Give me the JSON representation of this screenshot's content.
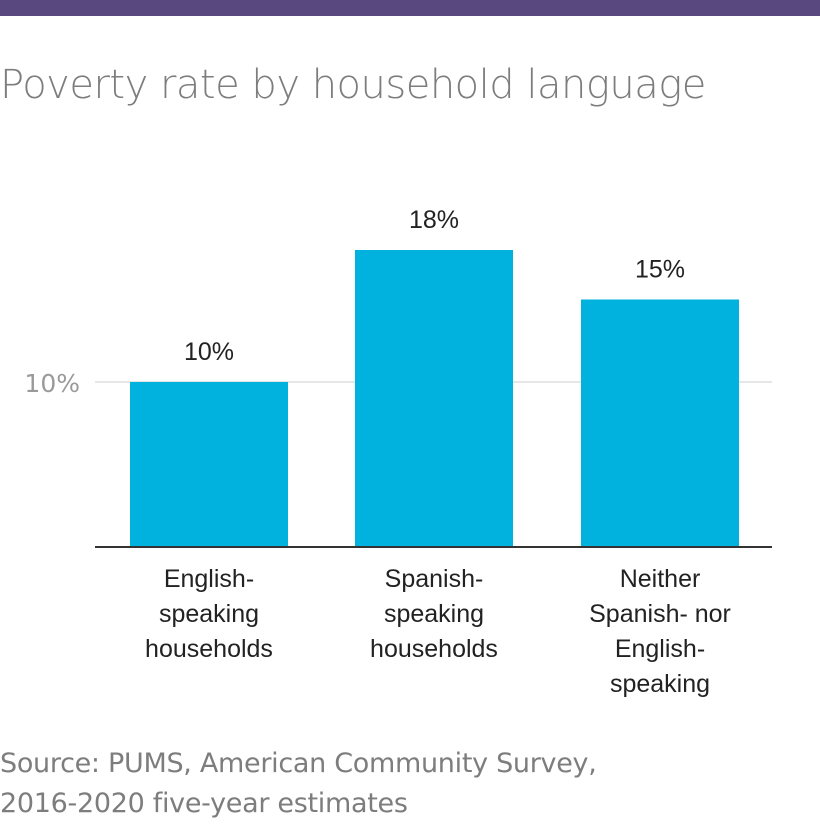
{
  "colors": {
    "top_bar": "#58487f",
    "bar": "#00b2dd",
    "gridline": "#e6e6e6",
    "axis": "#333333",
    "muted_text": "#7d7d7d"
  },
  "title": "Poverty rate by household language",
  "chart_data": {
    "type": "bar",
    "categories": [
      [
        "English-",
        "speaking",
        "households"
      ],
      [
        "Spanish-",
        "speaking",
        "households"
      ],
      [
        "Neither",
        "Spanish- nor",
        "English-",
        "speaking"
      ]
    ],
    "values": [
      10,
      18,
      15
    ],
    "value_labels": [
      "10%",
      "18%",
      "15%"
    ],
    "ylim": [
      0,
      18.5
    ],
    "yticks": [
      10
    ],
    "ytick_labels": [
      "10%"
    ],
    "grid": true
  },
  "source": {
    "line1": "Source: PUMS, American Community Survey,",
    "line2": "2016-2020 five-year estimates"
  }
}
